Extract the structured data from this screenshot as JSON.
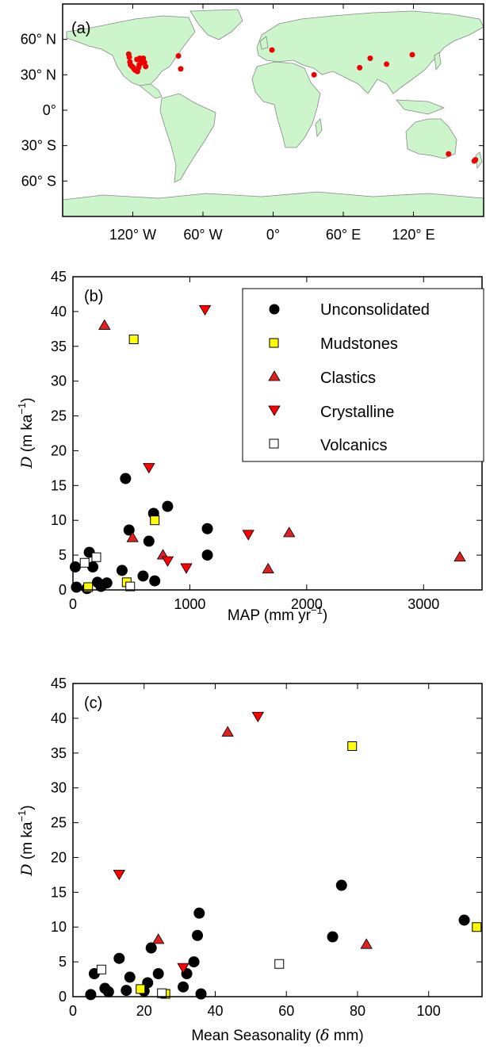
{
  "chart_data": [
    {
      "panel": "(a)",
      "type": "map",
      "ytick_labels": [
        "60° N",
        "30° N",
        "0°",
        "30° S",
        "60° S"
      ],
      "xtick_labels": [
        "120° W",
        "60° W",
        "0°",
        "60° E",
        "120° E"
      ],
      "lon_range": [
        -180,
        180
      ],
      "lat_range": [
        -90,
        90
      ],
      "land_color": "#ccf5cc",
      "coast_color": "#888888",
      "marker_color": "#ee0000",
      "sites": [
        {
          "lon": -123.5,
          "lat": 47.5
        },
        {
          "lon": -123,
          "lat": 45
        },
        {
          "lon": -122.5,
          "lat": 41
        },
        {
          "lon": -122,
          "lat": 38.5
        },
        {
          "lon": -121,
          "lat": 37.5
        },
        {
          "lon": -120,
          "lat": 36.5
        },
        {
          "lon": -119,
          "lat": 35
        },
        {
          "lon": -118,
          "lat": 34
        },
        {
          "lon": -117,
          "lat": 33.5
        },
        {
          "lon": -116,
          "lat": 32.8
        },
        {
          "lon": -115,
          "lat": 36
        },
        {
          "lon": -114.5,
          "lat": 38.5
        },
        {
          "lon": -113,
          "lat": 40
        },
        {
          "lon": -112,
          "lat": 42
        },
        {
          "lon": -114,
          "lat": 44
        },
        {
          "lon": -111,
          "lat": 44
        },
        {
          "lon": -116.5,
          "lat": 43
        },
        {
          "lon": -110,
          "lat": 40.5
        },
        {
          "lon": -109,
          "lat": 37
        },
        {
          "lon": -81,
          "lat": 46
        },
        {
          "lon": -79,
          "lat": 35
        },
        {
          "lon": -1,
          "lat": 51
        },
        {
          "lon": 35,
          "lat": 30
        },
        {
          "lon": 74,
          "lat": 36
        },
        {
          "lon": 83,
          "lat": 44
        },
        {
          "lon": 97,
          "lat": 39
        },
        {
          "lon": 119,
          "lat": 47
        },
        {
          "lon": 150,
          "lat": -37
        },
        {
          "lon": 172,
          "lat": -43
        },
        {
          "lon": 173,
          "lat": -42
        }
      ]
    },
    {
      "panel": "(b)",
      "type": "scatter",
      "xlabel": "MAP (mm yr",
      "xlabel_sup": "−1",
      "xlabel_end": ")",
      "ylabel_var": "D",
      "ylabel": " (m ka",
      "ylabel_sup": "−1",
      "ylabel_end": ")",
      "xlim": [
        0,
        3500
      ],
      "ylim": [
        0,
        45
      ],
      "xticks": [
        0,
        1000,
        2000,
        3000
      ],
      "yticks": [
        0,
        5,
        10,
        15,
        20,
        25,
        30,
        35,
        40,
        45
      ],
      "legend_position": "top-right",
      "legend": [
        {
          "label": "Unconsolidated",
          "marker": "circle",
          "color": "#000000"
        },
        {
          "label": "Mudstones",
          "marker": "square",
          "color": "#ffff00"
        },
        {
          "label": "Clastics",
          "marker": "triangle-up",
          "color": "#dd2222"
        },
        {
          "label": "Crystalline",
          "marker": "triangle-down",
          "color": "#ff0000"
        },
        {
          "label": "Volcanics",
          "marker": "square",
          "color": "#ffffff"
        }
      ],
      "series": [
        {
          "name": "Unconsolidated",
          "marker": "circle",
          "color": "#000000",
          "points": [
            [
              20,
              3.3
            ],
            [
              30,
              0.4
            ],
            [
              120,
              0.2
            ],
            [
              140,
              5.4
            ],
            [
              170,
              3.3
            ],
            [
              210,
              1.1
            ],
            [
              240,
              0.5
            ],
            [
              290,
              1.0
            ],
            [
              420,
              2.8
            ],
            [
              450,
              16.0
            ],
            [
              480,
              8.6
            ],
            [
              600,
              2.0
            ],
            [
              650,
              7.0
            ],
            [
              690,
              11.0
            ],
            [
              700,
              1.3
            ],
            [
              810,
              12.0
            ],
            [
              1150,
              8.8
            ],
            [
              1150,
              5.0
            ]
          ]
        },
        {
          "name": "Mudstones",
          "marker": "square",
          "color": "#ffff00",
          "points": [
            [
              130,
              0.4
            ],
            [
              460,
              1.1
            ],
            [
              520,
              36.0
            ],
            [
              700,
              10.0
            ]
          ]
        },
        {
          "name": "Clastics",
          "marker": "triangle-up",
          "color": "#dd2222",
          "points": [
            [
              270,
              38.0
            ],
            [
              510,
              7.5
            ],
            [
              770,
              5.0
            ],
            [
              1670,
              3.0
            ],
            [
              1850,
              8.2
            ],
            [
              3310,
              4.7
            ]
          ]
        },
        {
          "name": "Crystalline",
          "marker": "triangle-down",
          "color": "#ff0000",
          "points": [
            [
              1130,
              40.3
            ],
            [
              650,
              17.6
            ],
            [
              810,
              4.2
            ],
            [
              970,
              3.2
            ],
            [
              1500,
              8.0
            ]
          ]
        },
        {
          "name": "Volcanics",
          "marker": "square",
          "color": "#ffffff",
          "points": [
            [
              100,
              3.9
            ],
            [
              200,
              4.7
            ],
            [
              490,
              0.5
            ]
          ]
        }
      ]
    },
    {
      "panel": "(c)",
      "type": "scatter",
      "xlabel": "Mean Seasonality (",
      "xlabel_var": "δ",
      "xlabel_end": " mm)",
      "ylabel_var": "D",
      "ylabel": " (m ka",
      "ylabel_sup": "−1",
      "ylabel_end": ")",
      "xlim": [
        0,
        115
      ],
      "ylim": [
        0,
        45
      ],
      "xticks": [
        0,
        20,
        40,
        60,
        80,
        100
      ],
      "yticks": [
        0,
        5,
        10,
        15,
        20,
        25,
        30,
        35,
        40,
        45
      ],
      "series": [
        {
          "name": "Unconsolidated",
          "marker": "circle",
          "color": "#000000",
          "points": [
            [
              5,
              0.3
            ],
            [
              6,
              3.3
            ],
            [
              9,
              1.2
            ],
            [
              10,
              0.7
            ],
            [
              13,
              5.5
            ],
            [
              15,
              0.9
            ],
            [
              16,
              2.8
            ],
            [
              20,
              0.8
            ],
            [
              21,
              2.0
            ],
            [
              22,
              7.0
            ],
            [
              24,
              3.3
            ],
            [
              31,
              1.4
            ],
            [
              32,
              3.3
            ],
            [
              34,
              5.0
            ],
            [
              35,
              8.8
            ],
            [
              35.5,
              12.0
            ],
            [
              36,
              0.4
            ],
            [
              73,
              8.6
            ],
            [
              75.5,
              16.0
            ],
            [
              110,
              11.0
            ]
          ]
        },
        {
          "name": "Mudstones",
          "marker": "square",
          "color": "#ffff00",
          "points": [
            [
              19,
              1.1
            ],
            [
              26,
              0.4
            ],
            [
              78.5,
              36.0
            ],
            [
              113.5,
              10.0
            ]
          ]
        },
        {
          "name": "Clastics",
          "marker": "triangle-up",
          "color": "#dd2222",
          "points": [
            [
              43.5,
              38.0
            ],
            [
              24,
              8.2
            ],
            [
              82.5,
              7.5
            ]
          ]
        },
        {
          "name": "Crystalline",
          "marker": "triangle-down",
          "color": "#ff0000",
          "points": [
            [
              52,
              40.3
            ],
            [
              13,
              17.6
            ],
            [
              31,
              4.2
            ]
          ]
        },
        {
          "name": "Volcanics",
          "marker": "square",
          "color": "#ffffff",
          "points": [
            [
              8,
              3.9
            ],
            [
              25,
              0.5
            ],
            [
              58,
              4.7
            ]
          ]
        }
      ]
    }
  ]
}
